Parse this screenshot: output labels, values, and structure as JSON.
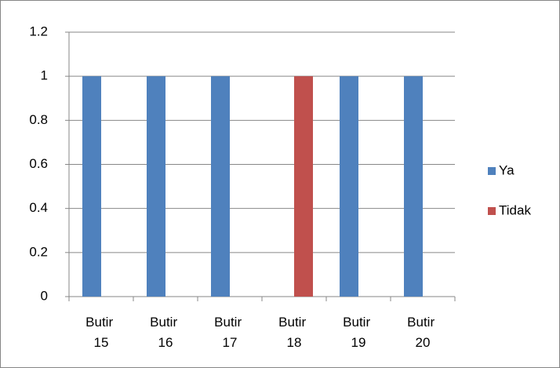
{
  "chart_data": {
    "type": "bar",
    "categories": [
      "Butir 15",
      "Butir 16",
      "Butir 17",
      "Butir 18",
      "Butir 19",
      "Butir 20"
    ],
    "series": [
      {
        "name": "Ya",
        "color": "#4f81bd",
        "values": [
          1,
          1,
          1,
          0,
          1,
          1
        ]
      },
      {
        "name": "Tidak",
        "color": "#c0504d",
        "values": [
          0,
          0,
          0,
          1,
          0,
          0
        ]
      }
    ],
    "ylim": [
      0,
      1.2
    ],
    "yticks": [
      0,
      0.2,
      0.4,
      0.6,
      0.8,
      1,
      1.2
    ],
    "grid": true,
    "legend": "right"
  }
}
